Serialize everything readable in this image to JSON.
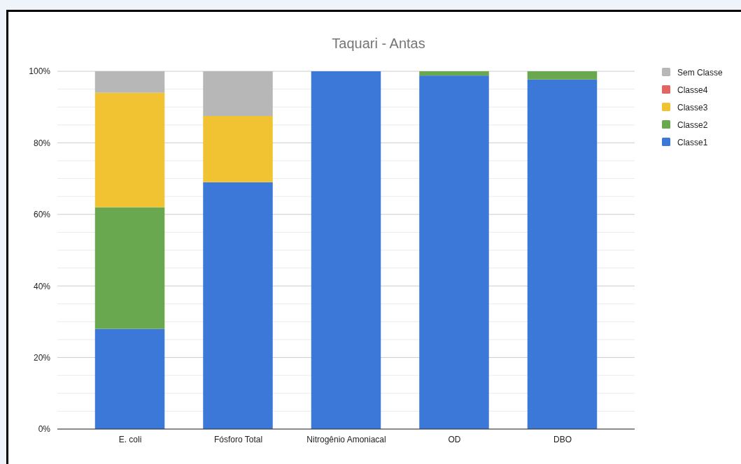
{
  "chart_data": {
    "type": "bar",
    "title": "Taquari - Antas",
    "stacked": true,
    "categories": [
      "E. coli",
      "Fósforo Total",
      "Nitrogênio Amoniacal",
      "OD",
      "DBO"
    ],
    "series": [
      {
        "name": "Classe1",
        "color": "#3c78d8",
        "values": [
          28,
          69,
          100,
          98.8,
          97.7
        ]
      },
      {
        "name": "Classe2",
        "color": "#6aa84f",
        "values": [
          34,
          0,
          0,
          1.2,
          2.3
        ]
      },
      {
        "name": "Classe3",
        "color": "#f1c232",
        "values": [
          32,
          18.5,
          0,
          0,
          0
        ]
      },
      {
        "name": "Classe4",
        "color": "#e06666",
        "values": [
          0,
          0,
          0,
          0,
          0
        ]
      },
      {
        "name": "Sem Classe",
        "color": "#b7b7b7",
        "values": [
          6,
          12.5,
          0,
          0,
          0
        ]
      }
    ],
    "ylim": [
      0,
      100
    ],
    "yticks": [
      {
        "value": 0,
        "label": "0%"
      },
      {
        "value": 5,
        "label": null
      },
      {
        "value": 10,
        "label": null
      },
      {
        "value": 15,
        "label": null
      },
      {
        "value": 20,
        "label": "20%"
      },
      {
        "value": 25,
        "label": null
      },
      {
        "value": 30,
        "label": null
      },
      {
        "value": 35,
        "label": null
      },
      {
        "value": 40,
        "label": "40%"
      },
      {
        "value": 45,
        "label": null
      },
      {
        "value": 50,
        "label": null
      },
      {
        "value": 55,
        "label": null
      },
      {
        "value": 60,
        "label": "60%"
      },
      {
        "value": 65,
        "label": null
      },
      {
        "value": 70,
        "label": null
      },
      {
        "value": 75,
        "label": null
      },
      {
        "value": 80,
        "label": "80%"
      },
      {
        "value": 85,
        "label": null
      },
      {
        "value": 90,
        "label": null
      },
      {
        "value": 95,
        "label": null
      },
      {
        "value": 100,
        "label": "100%"
      }
    ],
    "grid": true,
    "legend": "top right"
  }
}
